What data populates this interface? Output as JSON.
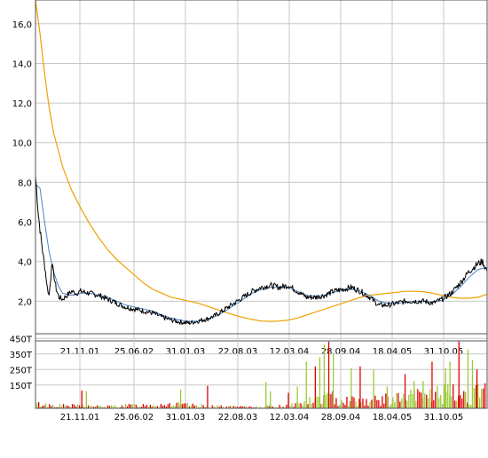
{
  "chart_data": [
    {
      "type": "line",
      "title": "",
      "xlabel": "",
      "ylabel": "",
      "ylim": [
        0,
        17.2
      ],
      "y_ticks": [
        "2,0",
        "4,0",
        "6,0",
        "8,0",
        "10,0",
        "12,0",
        "14,0",
        "16,0"
      ],
      "y_tick_values": [
        2,
        4,
        6,
        8,
        10,
        12,
        14,
        16
      ],
      "x_tick_labels": [
        "21.11.01",
        "25.06.02",
        "31.01.03",
        "22.08.03",
        "12.03.04",
        "28.09.04",
        "18.04.05",
        "31.10.05"
      ],
      "grid": true,
      "colors": {
        "price": "#000000",
        "ma_short": "#4a86c8",
        "ma_long": "#f0a000",
        "grid": "#c8c8c8"
      },
      "series_shape": {
        "price": [
          [
            0,
            8.3
          ],
          [
            0.1,
            7.8
          ],
          [
            0.3,
            6.5
          ],
          [
            0.5,
            5.6
          ],
          [
            0.8,
            4.5
          ],
          [
            1.1,
            3.5
          ],
          [
            1.3,
            2.7
          ],
          [
            1.5,
            2.3
          ],
          [
            1.7,
            3.2
          ],
          [
            1.8,
            4.0
          ],
          [
            2.0,
            3.4
          ],
          [
            2.3,
            2.6
          ],
          [
            2.6,
            2.2
          ],
          [
            3.0,
            2.1
          ],
          [
            3.5,
            2.3
          ],
          [
            4.0,
            2.5
          ],
          [
            4.5,
            2.4
          ],
          [
            5.0,
            2.5
          ],
          [
            6.0,
            2.4
          ],
          [
            7.0,
            2.3
          ],
          [
            8.0,
            2.1
          ],
          [
            9.0,
            1.9
          ],
          [
            10.0,
            1.7
          ],
          [
            11.0,
            1.6
          ],
          [
            12.0,
            1.5
          ],
          [
            13.0,
            1.4
          ],
          [
            14.0,
            1.2
          ],
          [
            15.0,
            1.05
          ],
          [
            16.0,
            0.95
          ],
          [
            17.0,
            0.9
          ],
          [
            18.0,
            1.0
          ],
          [
            19.0,
            1.1
          ],
          [
            20.0,
            1.3
          ],
          [
            21.0,
            1.6
          ],
          [
            22.0,
            1.9
          ],
          [
            23.0,
            2.2
          ],
          [
            24.0,
            2.5
          ],
          [
            25.0,
            2.7
          ],
          [
            26.0,
            2.8
          ],
          [
            27.0,
            2.7
          ],
          [
            28.0,
            2.8
          ],
          [
            29.0,
            2.5
          ],
          [
            30.0,
            2.2
          ],
          [
            31.0,
            2.2
          ],
          [
            32.0,
            2.3
          ],
          [
            33.0,
            2.5
          ],
          [
            34.0,
            2.6
          ],
          [
            35.0,
            2.7
          ],
          [
            36.0,
            2.5
          ],
          [
            37.0,
            2.2
          ],
          [
            38.0,
            1.8
          ],
          [
            39.0,
            1.8
          ],
          [
            40.0,
            1.9
          ],
          [
            41.0,
            2.0
          ],
          [
            42.0,
            2.0
          ],
          [
            43.0,
            2.0
          ],
          [
            44.0,
            1.9
          ],
          [
            45.0,
            2.1
          ],
          [
            46.0,
            2.4
          ],
          [
            47.0,
            2.9
          ],
          [
            48.0,
            3.5
          ],
          [
            49.0,
            3.9
          ],
          [
            49.5,
            4.0
          ],
          [
            50.0,
            3.5
          ]
        ],
        "ma_short": [
          [
            0,
            7.9
          ],
          [
            0.5,
            7.7
          ],
          [
            1.0,
            6.0
          ],
          [
            1.5,
            4.5
          ],
          [
            2.0,
            3.5
          ],
          [
            2.5,
            2.8
          ],
          [
            3.0,
            2.4
          ],
          [
            4.0,
            2.3
          ],
          [
            5.0,
            2.4
          ],
          [
            6.0,
            2.4
          ],
          [
            7.0,
            2.3
          ],
          [
            8.0,
            2.2
          ],
          [
            9.0,
            2.0
          ],
          [
            10.0,
            1.8
          ],
          [
            11.0,
            1.7
          ],
          [
            12.0,
            1.6
          ],
          [
            13.0,
            1.5
          ],
          [
            14.0,
            1.3
          ],
          [
            15.0,
            1.15
          ],
          [
            16.0,
            1.05
          ],
          [
            17.0,
            0.98
          ],
          [
            18.0,
            1.0
          ],
          [
            19.0,
            1.1
          ],
          [
            20.0,
            1.25
          ],
          [
            21.0,
            1.5
          ],
          [
            22.0,
            1.8
          ],
          [
            23.0,
            2.1
          ],
          [
            24.0,
            2.4
          ],
          [
            25.0,
            2.6
          ],
          [
            26.0,
            2.7
          ],
          [
            27.0,
            2.7
          ],
          [
            28.0,
            2.7
          ],
          [
            29.0,
            2.5
          ],
          [
            30.0,
            2.3
          ],
          [
            31.0,
            2.25
          ],
          [
            32.0,
            2.3
          ],
          [
            33.0,
            2.45
          ],
          [
            34.0,
            2.55
          ],
          [
            35.0,
            2.6
          ],
          [
            36.0,
            2.5
          ],
          [
            37.0,
            2.3
          ],
          [
            38.0,
            2.0
          ],
          [
            39.0,
            1.9
          ],
          [
            40.0,
            1.9
          ],
          [
            41.0,
            1.95
          ],
          [
            42.0,
            2.0
          ],
          [
            43.0,
            2.0
          ],
          [
            44.0,
            1.95
          ],
          [
            45.0,
            2.05
          ],
          [
            46.0,
            2.3
          ],
          [
            47.0,
            2.7
          ],
          [
            48.0,
            3.2
          ],
          [
            49.0,
            3.6
          ],
          [
            50.0,
            3.7
          ]
        ],
        "ma_long": [
          [
            0,
            17.2
          ],
          [
            0.5,
            15.5
          ],
          [
            1.0,
            13.5
          ],
          [
            1.5,
            11.8
          ],
          [
            2.0,
            10.5
          ],
          [
            3.0,
            8.8
          ],
          [
            4.0,
            7.6
          ],
          [
            5.0,
            6.7
          ],
          [
            6.0,
            5.9
          ],
          [
            7.0,
            5.2
          ],
          [
            8.0,
            4.6
          ],
          [
            9.0,
            4.1
          ],
          [
            10.0,
            3.7
          ],
          [
            11.0,
            3.3
          ],
          [
            12.0,
            2.9
          ],
          [
            13.0,
            2.6
          ],
          [
            14.0,
            2.4
          ],
          [
            15.0,
            2.2
          ],
          [
            16.0,
            2.1
          ],
          [
            17.0,
            2.0
          ],
          [
            18.0,
            1.9
          ],
          [
            19.0,
            1.75
          ],
          [
            20.0,
            1.6
          ],
          [
            21.0,
            1.45
          ],
          [
            22.0,
            1.3
          ],
          [
            23.0,
            1.18
          ],
          [
            24.0,
            1.08
          ],
          [
            25.0,
            1.0
          ],
          [
            26.0,
            0.98
          ],
          [
            27.0,
            1.0
          ],
          [
            28.0,
            1.05
          ],
          [
            29.0,
            1.15
          ],
          [
            30.0,
            1.3
          ],
          [
            31.0,
            1.45
          ],
          [
            32.0,
            1.6
          ],
          [
            33.0,
            1.75
          ],
          [
            34.0,
            1.9
          ],
          [
            35.0,
            2.05
          ],
          [
            36.0,
            2.2
          ],
          [
            37.0,
            2.3
          ],
          [
            38.0,
            2.35
          ],
          [
            39.0,
            2.4
          ],
          [
            40.0,
            2.45
          ],
          [
            41.0,
            2.5
          ],
          [
            42.0,
            2.5
          ],
          [
            43.0,
            2.48
          ],
          [
            44.0,
            2.4
          ],
          [
            45.0,
            2.3
          ],
          [
            46.0,
            2.2
          ],
          [
            47.0,
            2.15
          ],
          [
            48.0,
            2.15
          ],
          [
            49.0,
            2.2
          ],
          [
            50.0,
            2.35
          ]
        ]
      }
    },
    {
      "type": "bar",
      "title": "",
      "ylim": [
        0,
        480
      ],
      "y_ticks": [
        "150T",
        "250T",
        "350T",
        "450T"
      ],
      "y_tick_values": [
        150,
        250,
        350,
        450
      ],
      "x_tick_labels": [
        "21.11.01",
        "25.06.02",
        "31.01.03",
        "22.08.03",
        "12.03.04",
        "28.09.04",
        "18.04.05",
        "31.10.05"
      ],
      "grid": true,
      "colors": {
        "volume_down": "#e00000",
        "volume_up": "#99cc33",
        "grid": "#c8c8c8"
      },
      "volume_envelope": [
        [
          0,
          30
        ],
        [
          5,
          20
        ],
        [
          10,
          18
        ],
        [
          15,
          12
        ],
        [
          20,
          20
        ],
        [
          25,
          25
        ],
        [
          30,
          30
        ],
        [
          35,
          20
        ],
        [
          40,
          15
        ],
        [
          45,
          10
        ],
        [
          50,
          12
        ],
        [
          55,
          18
        ],
        [
          60,
          45
        ],
        [
          65,
          80
        ],
        [
          70,
          60
        ],
        [
          75,
          55
        ],
        [
          80,
          70
        ],
        [
          85,
          90
        ],
        [
          90,
          110
        ],
        [
          95,
          100
        ],
        [
          100,
          110
        ]
      ],
      "volume_spikes": [
        [
          10,
          115
        ],
        [
          11,
          110
        ],
        [
          32,
          120
        ],
        [
          38,
          145
        ],
        [
          51,
          170
        ],
        [
          52,
          110
        ],
        [
          56,
          100
        ],
        [
          58,
          140
        ],
        [
          60,
          300
        ],
        [
          62,
          270
        ],
        [
          63,
          330
        ],
        [
          64,
          410
        ],
        [
          65,
          430
        ],
        [
          66,
          350
        ],
        [
          70,
          260
        ],
        [
          72,
          270
        ],
        [
          75,
          250
        ],
        [
          78,
          140
        ],
        [
          82,
          220
        ],
        [
          84,
          175
        ],
        [
          86,
          175
        ],
        [
          88,
          300
        ],
        [
          91,
          260
        ],
        [
          92,
          300
        ],
        [
          94,
          430
        ],
        [
          96,
          380
        ],
        [
          97,
          310
        ],
        [
          98,
          250
        ]
      ]
    }
  ]
}
